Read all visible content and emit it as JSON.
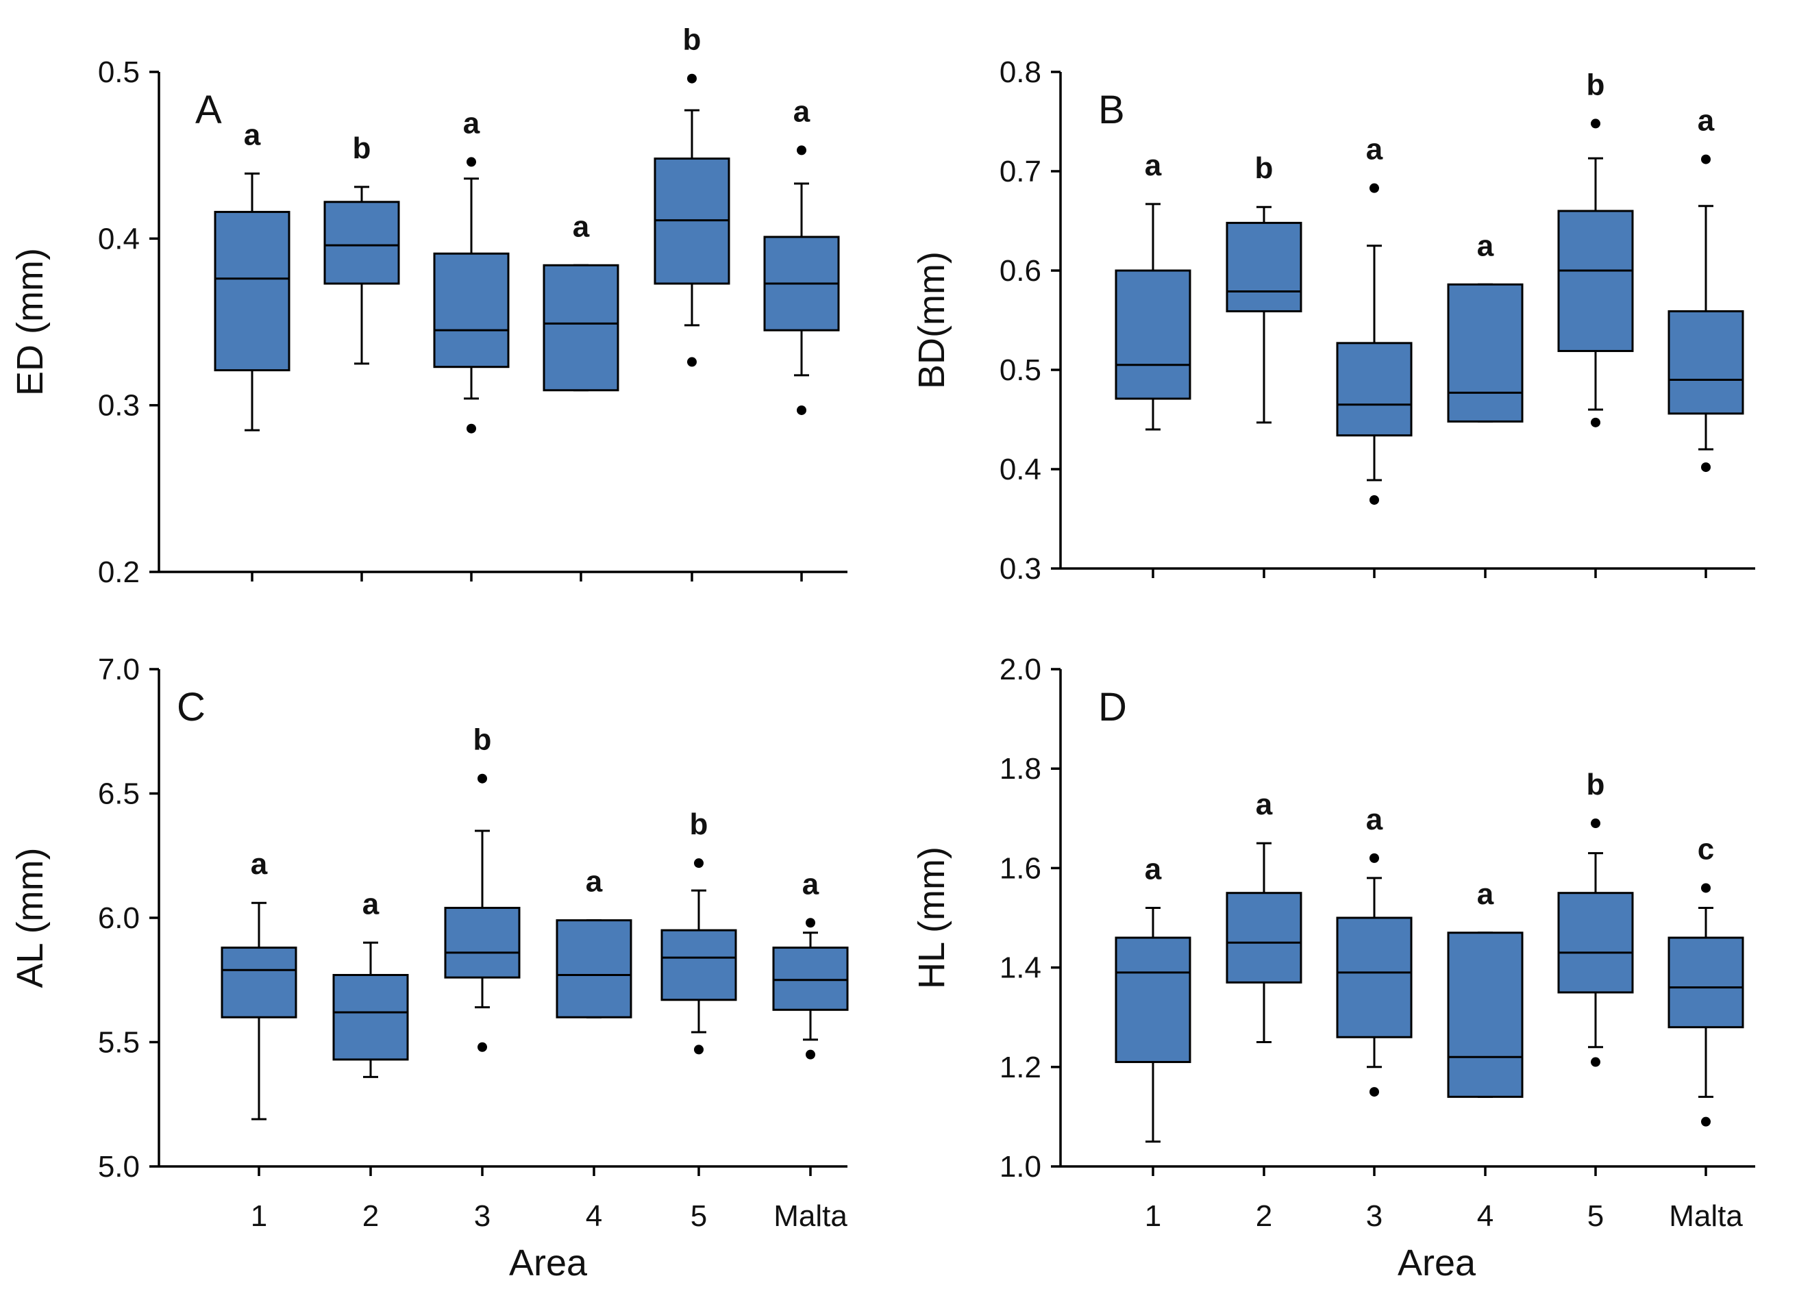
{
  "chart_data": [
    {
      "type": "box",
      "panel": "A",
      "ylabel": "ED (mm)",
      "xlabel": "",
      "ylim": [
        0.2,
        0.5
      ],
      "yticks": [
        "0.2",
        "0.3",
        "0.4",
        "0.5"
      ],
      "categories": [
        "1",
        "2",
        "3",
        "4",
        "5",
        "Malta"
      ],
      "show_category_labels": false,
      "boxes": [
        {
          "category": "1",
          "whisker_low": 0.285,
          "q1": 0.321,
          "median": 0.376,
          "q3": 0.416,
          "whisker_high": 0.439,
          "outliers": [],
          "letter": "a"
        },
        {
          "category": "2",
          "whisker_low": 0.325,
          "q1": 0.373,
          "median": 0.396,
          "q3": 0.422,
          "whisker_high": 0.431,
          "outliers": [],
          "letter": "b"
        },
        {
          "category": "3",
          "whisker_low": 0.304,
          "q1": 0.323,
          "median": 0.345,
          "q3": 0.391,
          "whisker_high": 0.436,
          "outliers": [
            0.446,
            0.286
          ],
          "letter": "a"
        },
        {
          "category": "4",
          "whisker_low": 0.309,
          "q1": 0.309,
          "median": 0.349,
          "q3": 0.384,
          "whisker_high": 0.384,
          "outliers": [],
          "letter": "a"
        },
        {
          "category": "5",
          "whisker_low": 0.348,
          "q1": 0.373,
          "median": 0.411,
          "q3": 0.448,
          "whisker_high": 0.477,
          "outliers": [
            0.496,
            0.326
          ],
          "letter": "b"
        },
        {
          "category": "Malta",
          "whisker_low": 0.318,
          "q1": 0.345,
          "median": 0.373,
          "q3": 0.401,
          "whisker_high": 0.433,
          "outliers": [
            0.453,
            0.297
          ],
          "letter": "a"
        }
      ]
    },
    {
      "type": "box",
      "panel": "B",
      "ylabel": "BD(mm)",
      "xlabel": "",
      "ylim": [
        0.3,
        0.8
      ],
      "yticks": [
        "0.3",
        "0.4",
        "0.5",
        "0.6",
        "0.7",
        "0.8"
      ],
      "categories": [
        "1",
        "2",
        "3",
        "4",
        "5",
        "Malta"
      ],
      "show_category_labels": false,
      "boxes": [
        {
          "category": "1",
          "whisker_low": 0.44,
          "q1": 0.471,
          "median": 0.505,
          "q3": 0.6,
          "whisker_high": 0.667,
          "outliers": [],
          "letter": "a"
        },
        {
          "category": "2",
          "whisker_low": 0.447,
          "q1": 0.559,
          "median": 0.579,
          "q3": 0.648,
          "whisker_high": 0.664,
          "outliers": [],
          "letter": "b"
        },
        {
          "category": "3",
          "whisker_low": 0.389,
          "q1": 0.434,
          "median": 0.465,
          "q3": 0.527,
          "whisker_high": 0.625,
          "outliers": [
            0.683,
            0.369
          ],
          "letter": "a"
        },
        {
          "category": "4",
          "whisker_low": 0.448,
          "q1": 0.448,
          "median": 0.477,
          "q3": 0.586,
          "whisker_high": 0.586,
          "outliers": [],
          "letter": "a"
        },
        {
          "category": "5",
          "whisker_low": 0.46,
          "q1": 0.519,
          "median": 0.6,
          "q3": 0.66,
          "whisker_high": 0.713,
          "outliers": [
            0.748,
            0.447
          ],
          "letter": "b"
        },
        {
          "category": "Malta",
          "whisker_low": 0.42,
          "q1": 0.456,
          "median": 0.49,
          "q3": 0.559,
          "whisker_high": 0.665,
          "outliers": [
            0.712,
            0.402
          ],
          "letter": "a"
        }
      ]
    },
    {
      "type": "box",
      "panel": "C",
      "ylabel": "AL (mm)",
      "xlabel": "Area",
      "ylim": [
        5.0,
        7.0
      ],
      "yticks": [
        "5.0",
        "5.5",
        "6.0",
        "6.5",
        "7.0"
      ],
      "categories": [
        "1",
        "2",
        "3",
        "4",
        "5",
        "Malta"
      ],
      "show_category_labels": true,
      "boxes": [
        {
          "category": "1",
          "whisker_low": 5.19,
          "q1": 5.6,
          "median": 5.79,
          "q3": 5.88,
          "whisker_high": 6.06,
          "outliers": [],
          "letter": "a"
        },
        {
          "category": "2",
          "whisker_low": 5.36,
          "q1": 5.43,
          "median": 5.62,
          "q3": 5.77,
          "whisker_high": 5.9,
          "outliers": [],
          "letter": "a"
        },
        {
          "category": "3",
          "whisker_low": 5.64,
          "q1": 5.76,
          "median": 5.86,
          "q3": 6.04,
          "whisker_high": 6.35,
          "outliers": [
            6.56,
            5.48
          ],
          "letter": "b"
        },
        {
          "category": "4",
          "whisker_low": 5.6,
          "q1": 5.6,
          "median": 5.77,
          "q3": 5.99,
          "whisker_high": 5.99,
          "outliers": [],
          "letter": "a"
        },
        {
          "category": "5",
          "whisker_low": 5.54,
          "q1": 5.67,
          "median": 5.84,
          "q3": 5.95,
          "whisker_high": 6.11,
          "outliers": [
            6.22,
            5.47
          ],
          "letter": "b"
        },
        {
          "category": "Malta",
          "whisker_low": 5.51,
          "q1": 5.63,
          "median": 5.75,
          "q3": 5.88,
          "whisker_high": 5.94,
          "outliers": [
            5.98,
            5.45
          ],
          "letter": "a"
        }
      ]
    },
    {
      "type": "box",
      "panel": "D",
      "ylabel": "HL (mm)",
      "xlabel": "Area",
      "ylim": [
        1.0,
        2.0
      ],
      "yticks": [
        "1.0",
        "1.2",
        "1.4",
        "1.6",
        "1.8",
        "2.0"
      ],
      "categories": [
        "1",
        "2",
        "3",
        "4",
        "5",
        "Malta"
      ],
      "show_category_labels": true,
      "boxes": [
        {
          "category": "1",
          "whisker_low": 1.05,
          "q1": 1.21,
          "median": 1.39,
          "q3": 1.46,
          "whisker_high": 1.52,
          "outliers": [],
          "letter": "a"
        },
        {
          "category": "2",
          "whisker_low": 1.25,
          "q1": 1.37,
          "median": 1.45,
          "q3": 1.55,
          "whisker_high": 1.65,
          "outliers": [],
          "letter": "a"
        },
        {
          "category": "3",
          "whisker_low": 1.2,
          "q1": 1.26,
          "median": 1.39,
          "q3": 1.5,
          "whisker_high": 1.58,
          "outliers": [
            1.62,
            1.15
          ],
          "letter": "a"
        },
        {
          "category": "4",
          "whisker_low": 1.14,
          "q1": 1.14,
          "median": 1.22,
          "q3": 1.47,
          "whisker_high": 1.47,
          "outliers": [],
          "letter": "a"
        },
        {
          "category": "5",
          "whisker_low": 1.24,
          "q1": 1.35,
          "median": 1.43,
          "q3": 1.55,
          "whisker_high": 1.63,
          "outliers": [
            1.69,
            1.21
          ],
          "letter": "b"
        },
        {
          "category": "Malta",
          "whisker_low": 1.14,
          "q1": 1.28,
          "median": 1.36,
          "q3": 1.46,
          "whisker_high": 1.52,
          "outliers": [
            1.56,
            1.09
          ],
          "letter": "c"
        }
      ]
    }
  ]
}
